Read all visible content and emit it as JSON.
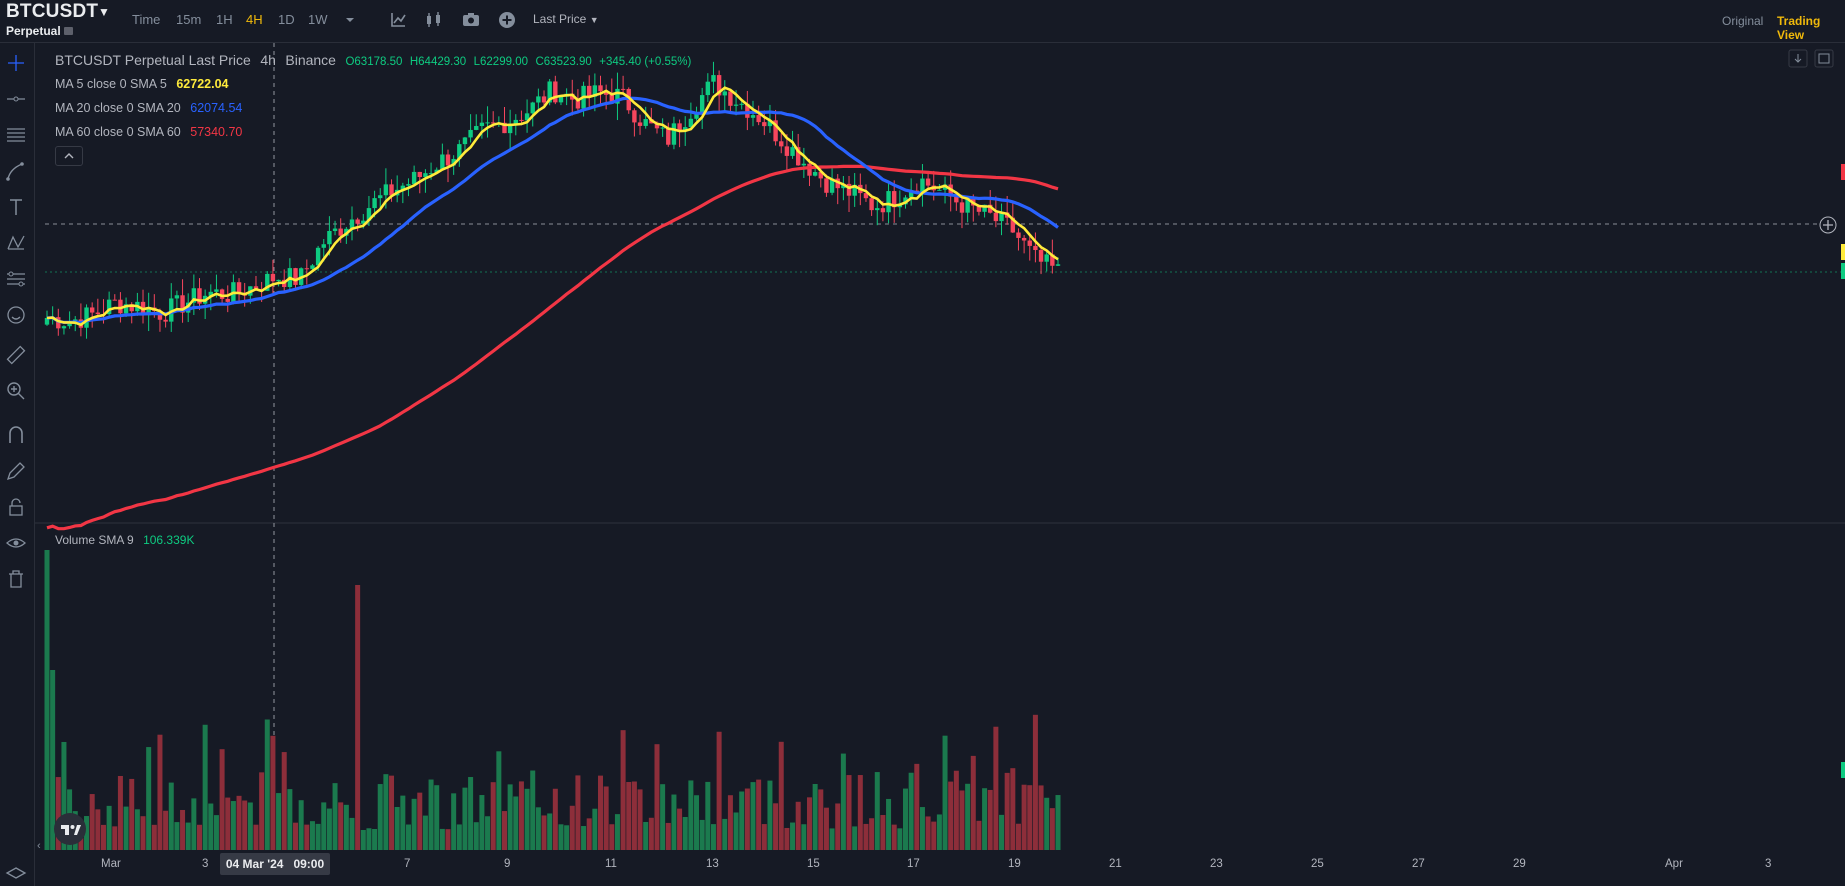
{
  "header": {
    "symbol": "BTCUSDT",
    "contract_type": "Perpetual",
    "timeframes": [
      {
        "label": "Time",
        "active": false
      },
      {
        "label": "15m",
        "active": false
      },
      {
        "label": "1H",
        "active": false
      },
      {
        "label": "4H",
        "active": true
      },
      {
        "label": "1D",
        "active": false
      },
      {
        "label": "1W",
        "active": false
      }
    ],
    "icons": [
      "chevron-down-icon",
      "indicators-icon",
      "chart-type-icon",
      "camera-icon",
      "add-icon"
    ],
    "price_type": "Last Price",
    "view_original": "Original",
    "view_tradingview": "Trading View"
  },
  "left_toolbar": [
    "crosshair-icon",
    "horizontal-line-icon",
    "channel-icon",
    "brush-icon",
    "text-icon",
    "pattern-icon",
    "fib-icon",
    "emoji-icon",
    "ruler-icon",
    "zoom-icon",
    "magnet-icon",
    "pencil-lock-icon",
    "lock-icon",
    "eye-icon",
    "trash-icon",
    "layers-icon"
  ],
  "legend": {
    "title": "BTCUSDT Perpetual Last Price",
    "interval": "4h",
    "exchange": "Binance",
    "open": "O63178.50",
    "high": "H64429.30",
    "low": "L62299.00",
    "close": "C63523.90",
    "change": "+345.40 (+0.55%)",
    "ma": [
      {
        "label": "MA 5 close 0 SMA 5",
        "value": "62722.04",
        "color": "#ffeb3b"
      },
      {
        "label": "MA 20 close 0 SMA 20",
        "value": "62074.54",
        "color": "#2962ff"
      },
      {
        "label": "MA 60 close 0 SMA 60",
        "value": "57340.70",
        "color": "#f23645"
      }
    ],
    "volume_label": "Volume SMA 9",
    "volume_value": "106.339K"
  },
  "x_axis": {
    "labels": [
      "Mar",
      "3",
      "7",
      "9",
      "11",
      "13",
      "15",
      "17",
      "19",
      "21",
      "23",
      "25",
      "27",
      "29",
      "Apr",
      "3"
    ],
    "crosshair_date": "04 Mar '24",
    "crosshair_time": "09:00"
  },
  "colors": {
    "up": "#0ecb81",
    "down": "#f6465d",
    "volume_up": "#1b7a4e",
    "volume_down": "#8d2e3a",
    "ma5": "#ffeb3b",
    "ma20": "#2962ff",
    "ma60": "#f23645"
  },
  "chart_data": {
    "type": "candlestick",
    "series_4h_close": [
      62150,
      62050,
      62250,
      62600,
      62500,
      62300,
      62600,
      62900,
      62850,
      63100,
      63400,
      63300,
      64400,
      65000,
      65500,
      65950,
      66300,
      66800,
      67200,
      67800,
      68050,
      68400,
      69000,
      68700,
      68900,
      68800,
      68000,
      67500,
      68400,
      69200,
      68700,
      68200,
      67500,
      66800,
      66200,
      65900,
      65500,
      65800,
      66300,
      65900,
      65500,
      65200,
      64800,
      63900,
      63524
    ],
    "moving_averages": [
      {
        "name": "MA 5",
        "last": 62722.04
      },
      {
        "name": "MA 20",
        "last": 62074.54
      },
      {
        "name": "MA 60",
        "last": 57340.7
      }
    ],
    "volume_last": "106.339K"
  }
}
